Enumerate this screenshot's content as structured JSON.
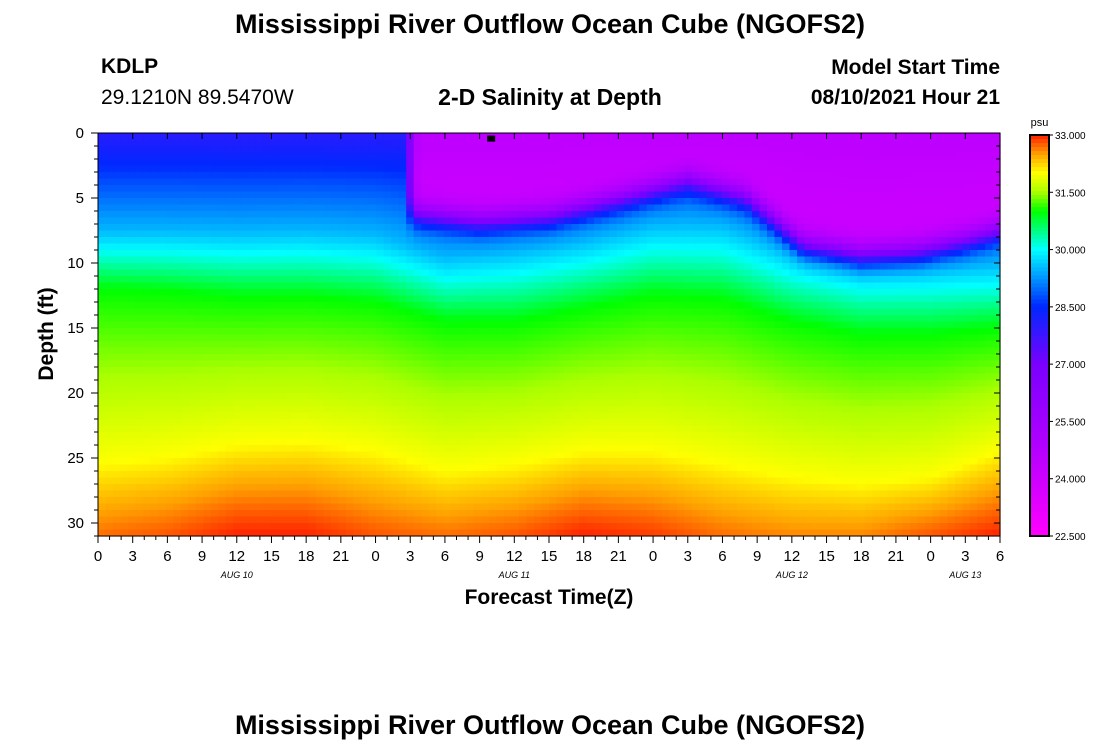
{
  "header": {
    "title": "Mississippi River Outflow Ocean Cube (NGOFS2)",
    "station_id": "KDLP",
    "station_coords": "29.1210N  89.5470W",
    "subtitle": "2-D Salinity at Depth",
    "model_start_label": "Model Start Time",
    "model_start_value": "08/10/2021 Hour 21"
  },
  "footer": {
    "title": "Mississippi River Outflow Ocean Cube (NGOFS2)"
  },
  "chart_data": {
    "type": "heatmap",
    "title": "2-D Salinity at Depth",
    "xlabel": "Forecast Time(Z)",
    "ylabel": "Depth (ft)",
    "x_range_hours": [
      0,
      78
    ],
    "x_tick_labels": [
      "0",
      "3",
      "6",
      "9",
      "12",
      "15",
      "18",
      "21",
      "0",
      "3",
      "6",
      "9",
      "12",
      "15",
      "18",
      "21",
      "0",
      "3",
      "6",
      "9",
      "12",
      "15",
      "18",
      "21",
      "0",
      "3",
      "6"
    ],
    "date_labels": [
      {
        "text": "AUG 10",
        "hour": 12
      },
      {
        "text": "AUG 11",
        "hour": 36
      },
      {
        "text": "AUG 12",
        "hour": 60
      },
      {
        "text": "AUG 13",
        "hour": 75
      }
    ],
    "ylim": [
      0,
      31
    ],
    "y_ticks": [
      0,
      5,
      10,
      15,
      20,
      25,
      30
    ],
    "colorbar": {
      "unit": "psu",
      "min": 22.5,
      "max": 33.0,
      "tick_values": [
        33.0,
        31.5,
        30.0,
        28.5,
        27.0,
        25.5,
        24.0,
        22.5
      ],
      "tick_labels": [
        "33.000",
        "31.500",
        "30.000",
        "28.500",
        "27.000",
        "25.500",
        "24.000",
        "22.500"
      ],
      "stops": [
        {
          "value": 22.5,
          "color": "#ff00ff"
        },
        {
          "value": 24.75,
          "color": "#b400ff"
        },
        {
          "value": 27.0,
          "color": "#7a00ff"
        },
        {
          "value": 28.5,
          "color": "#0028ff"
        },
        {
          "value": 30.0,
          "color": "#00ffff"
        },
        {
          "value": 31.0,
          "color": "#00ff00"
        },
        {
          "value": 31.5,
          "color": "#aaff00"
        },
        {
          "value": 32.0,
          "color": "#ffff00"
        },
        {
          "value": 32.5,
          "color": "#ffa000"
        },
        {
          "value": 33.0,
          "color": "#ff2000"
        }
      ]
    },
    "surface_fresh_layer": {
      "onset_hour": 26.5,
      "base_depth_ft": [
        [
          26.5,
          6.0
        ],
        [
          33,
          6.7
        ],
        [
          39,
          6.3
        ],
        [
          45,
          5.0
        ],
        [
          51,
          3.5
        ],
        [
          56,
          4.8
        ],
        [
          61,
          8.5
        ],
        [
          66,
          9.3
        ],
        [
          71,
          9.0
        ],
        [
          75,
          8.2
        ],
        [
          78,
          7.4
        ]
      ]
    },
    "isohaline_depths_ft": {
      "hours": [
        0,
        6,
        12,
        18,
        24,
        30,
        36,
        42,
        48,
        54,
        60,
        66,
        72,
        78
      ],
      "s29_5": [
        7.5,
        7.5,
        7.6,
        7.5,
        7.8,
        9.5,
        9.0,
        8.2,
        7.0,
        7.0,
        9.0,
        10.0,
        10.0,
        10.0
      ],
      "s31_0": [
        12.0,
        12.2,
        12.6,
        12.6,
        13.0,
        14.5,
        14.5,
        13.5,
        12.5,
        12.8,
        14.5,
        15.5,
        15.5,
        15.0
      ],
      "s32_0": [
        25.5,
        25.0,
        24.0,
        23.8,
        24.5,
        26.0,
        25.5,
        24.5,
        24.5,
        25.5,
        26.5,
        27.0,
        26.5,
        24.5
      ],
      "bottom_max": [
        32.7,
        32.8,
        33.0,
        33.0,
        32.8,
        32.7,
        32.8,
        33.0,
        32.9,
        32.7,
        32.6,
        32.6,
        32.8,
        33.0
      ]
    },
    "marker": {
      "hour": 34,
      "depth_ft": 0.2
    }
  }
}
